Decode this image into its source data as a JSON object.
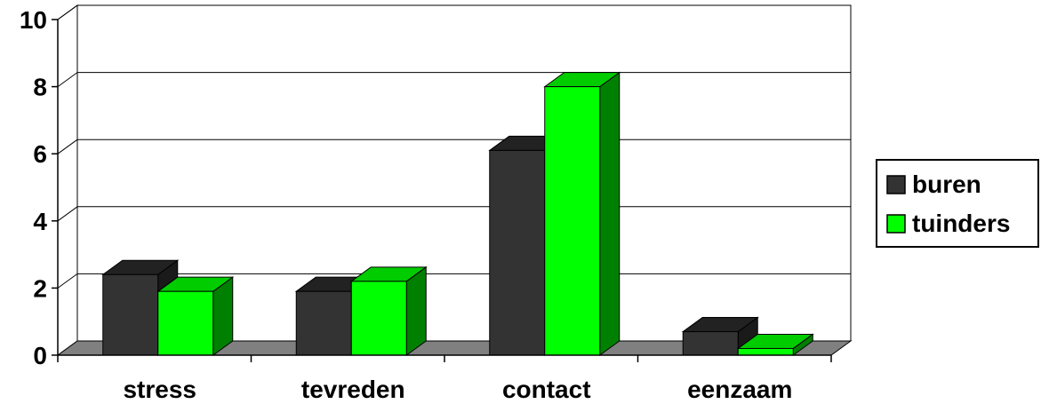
{
  "chart_data": {
    "type": "bar",
    "categories": [
      "stress",
      "tevreden",
      "contact",
      "eenzaam"
    ],
    "series": [
      {
        "name": "buren",
        "values": [
          2.4,
          1.9,
          6.1,
          0.7
        ]
      },
      {
        "name": "tuinders",
        "values": [
          1.9,
          2.2,
          8.0,
          0.2
        ]
      }
    ],
    "ylim": [
      0,
      10
    ],
    "yticks": [
      "0",
      "2",
      "4",
      "6",
      "8",
      "10"
    ],
    "grid": true,
    "legend_position": "right",
    "colors": {
      "buren": {
        "front": "#333333",
        "top": "#222222",
        "side": "#1a1a1a"
      },
      "tuinders": {
        "front": "#00ff00",
        "top": "#00cc00",
        "side": "#008000"
      },
      "floor": "#808080"
    }
  }
}
